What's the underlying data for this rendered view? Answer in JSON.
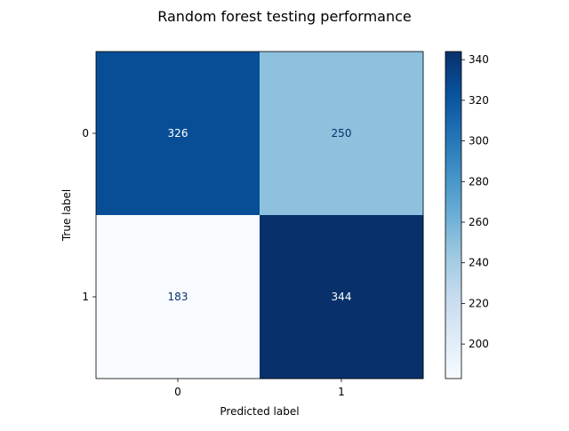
{
  "chart_data": {
    "type": "heatmap",
    "title": "Random forest testing performance",
    "xlabel": "Predicted label",
    "ylabel": "True label",
    "x_categories": [
      "0",
      "1"
    ],
    "y_categories": [
      "0",
      "1"
    ],
    "matrix": [
      [
        326,
        250
      ],
      [
        183,
        344
      ]
    ],
    "colormap": "Blues",
    "colorbar": {
      "vmin": 183,
      "vmax": 344,
      "ticks": [
        200,
        220,
        240,
        260,
        280,
        300,
        320,
        340
      ]
    },
    "text_colors": {
      "dark_cell": "#ffffff",
      "light_cell": "#08306b"
    }
  }
}
